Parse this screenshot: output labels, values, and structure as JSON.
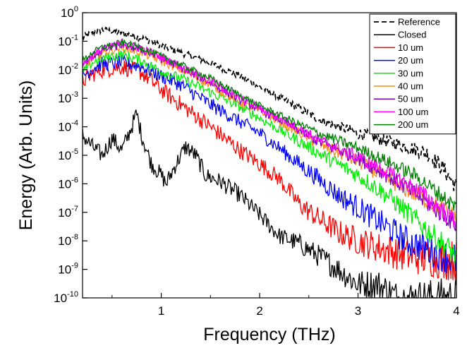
{
  "chart_data": {
    "type": "line",
    "xlabel": "Frequency (THz)",
    "ylabel": "Energy (Arb. Units)",
    "xlim": [
      0.2,
      4.0
    ],
    "ylim": [
      1e-10,
      1
    ],
    "y_scale": "log",
    "x_ticks": [
      1,
      2,
      3,
      4
    ],
    "x_tick_labels": [
      "1",
      "2",
      "3",
      "4"
    ],
    "y_ticks": [
      {
        "value": 1,
        "base": "10",
        "exp": "0"
      },
      {
        "value": 0.1,
        "base": "10",
        "exp": "-1"
      },
      {
        "value": 0.01,
        "base": "10",
        "exp": "-2"
      },
      {
        "value": 0.001,
        "base": "10",
        "exp": "-3"
      },
      {
        "value": 0.0001,
        "base": "10",
        "exp": "-4"
      },
      {
        "value": 1e-05,
        "base": "10",
        "exp": "-5"
      },
      {
        "value": 1e-06,
        "base": "10",
        "exp": "-6"
      },
      {
        "value": 1e-07,
        "base": "10",
        "exp": "-7"
      },
      {
        "value": 1e-08,
        "base": "10",
        "exp": "-8"
      },
      {
        "value": 1e-09,
        "base": "10",
        "exp": "-9"
      },
      {
        "value": 1e-10,
        "base": "10",
        "exp": "-10"
      }
    ],
    "grid": false,
    "legend_position": "top-right",
    "series": [
      {
        "name": "Reference",
        "color": "#000000",
        "dash": "dashed",
        "x": [
          0.2,
          0.3,
          0.4,
          0.6,
          0.8,
          1.0,
          1.2,
          1.5,
          1.8,
          2.0,
          2.3,
          2.6,
          3.0,
          3.4,
          3.7,
          3.85,
          4.0
        ],
        "y": [
          0.13,
          0.2,
          0.25,
          0.2,
          0.13,
          0.07,
          0.04,
          0.017,
          0.006,
          0.0025,
          0.0007,
          0.00018,
          6e-05,
          2.5e-05,
          1.2e-05,
          4e-06,
          8e-07
        ],
        "noise": 0.12
      },
      {
        "name": "Closed",
        "color": "#000000",
        "dash": "solid",
        "x": [
          0.2,
          0.3,
          0.4,
          0.5,
          0.6,
          0.7,
          0.75,
          0.8,
          0.9,
          1.0,
          1.05,
          1.15,
          1.25,
          1.35,
          1.45,
          1.6,
          1.8,
          2.0,
          2.2,
          2.4,
          2.6,
          2.8,
          3.0,
          3.2,
          3.4,
          3.6,
          4.0
        ],
        "y": [
          5e-05,
          2e-05,
          1e-05,
          4e-05,
          1.5e-05,
          0.0001,
          0.0003,
          5e-05,
          5e-06,
          2e-06,
          1e-06,
          5e-06,
          2e-05,
          1e-05,
          2e-06,
          1.2e-06,
          4e-07,
          8e-08,
          1.5e-08,
          8e-09,
          3e-09,
          1e-09,
          3e-10,
          3e-10,
          1e-10,
          1e-10,
          1e-10
        ],
        "noise": 0.3
      },
      {
        "name": "10 um",
        "color": "#ff0000",
        "dash": "solid",
        "x": [
          0.2,
          0.3,
          0.4,
          0.6,
          0.8,
          1.0,
          1.2,
          1.5,
          1.8,
          2.0,
          2.2,
          2.4,
          2.6,
          2.8,
          3.0,
          3.2,
          3.5,
          4.0
        ],
        "y": [
          0.004,
          0.007,
          0.01,
          0.013,
          0.008,
          0.002,
          0.0006,
          0.0001,
          1.5e-05,
          5e-06,
          1.5e-06,
          2e-07,
          6e-08,
          2e-08,
          1e-08,
          6e-09,
          3e-09,
          2e-09
        ],
        "noise": 0.3
      },
      {
        "name": "20 um",
        "color": "#0000ff",
        "dash": "solid",
        "x": [
          0.2,
          0.3,
          0.4,
          0.6,
          0.8,
          1.0,
          1.2,
          1.5,
          1.8,
          2.0,
          2.2,
          2.4,
          2.6,
          2.8,
          3.0,
          3.2,
          3.5,
          4.0
        ],
        "y": [
          0.006,
          0.011,
          0.016,
          0.018,
          0.013,
          0.006,
          0.003,
          0.0006,
          0.00015,
          6e-05,
          1.8e-05,
          5e-06,
          1.5e-06,
          4e-07,
          1.5e-07,
          5e-08,
          1e-08,
          2e-09
        ],
        "noise": 0.25
      },
      {
        "name": "30 um",
        "color": "#00ee00",
        "dash": "solid",
        "x": [
          0.2,
          0.3,
          0.4,
          0.6,
          0.8,
          1.0,
          1.2,
          1.5,
          1.8,
          2.0,
          2.3,
          2.6,
          3.0,
          3.3,
          3.6,
          4.0
        ],
        "y": [
          0.008,
          0.018,
          0.025,
          0.035,
          0.02,
          0.009,
          0.005,
          0.0016,
          0.0005,
          0.0002,
          5e-05,
          1.2e-05,
          2e-06,
          4e-07,
          5e-08,
          3e-09
        ],
        "noise": 0.18
      },
      {
        "name": "40 um",
        "color": "#ff8c1a",
        "dash": "solid",
        "x": [
          0.2,
          0.3,
          0.4,
          0.6,
          0.8,
          1.0,
          1.2,
          1.5,
          1.8,
          2.0,
          2.3,
          2.6,
          3.0,
          3.3,
          3.6,
          4.0
        ],
        "y": [
          0.012,
          0.025,
          0.04,
          0.06,
          0.04,
          0.02,
          0.01,
          0.003,
          0.0007,
          0.00035,
          0.0001,
          2.5e-05,
          6e-06,
          1.5e-06,
          4e-07,
          6e-08
        ],
        "noise": 0.15
      },
      {
        "name": "50 um",
        "color": "#8000c0",
        "dash": "solid",
        "x": [
          0.2,
          0.3,
          0.4,
          0.6,
          0.8,
          1.0,
          1.2,
          1.5,
          1.8,
          2.0,
          2.3,
          2.6,
          3.0,
          3.3,
          3.6,
          4.0
        ],
        "y": [
          0.015,
          0.03,
          0.05,
          0.075,
          0.05,
          0.025,
          0.012,
          0.0035,
          0.0009,
          0.0004,
          0.00012,
          3e-05,
          8e-06,
          2e-06,
          4e-07,
          4e-08
        ],
        "noise": 0.15
      },
      {
        "name": "100 um",
        "color": "#ff00ff",
        "dash": "solid",
        "x": [
          0.2,
          0.3,
          0.4,
          0.6,
          0.8,
          1.0,
          1.2,
          1.5,
          1.8,
          2.0,
          2.3,
          2.6,
          3.0,
          3.3,
          3.6,
          4.0
        ],
        "y": [
          0.015,
          0.03,
          0.05,
          0.085,
          0.055,
          0.028,
          0.013,
          0.004,
          0.001,
          0.00045,
          0.00014,
          3.5e-05,
          9e-06,
          2.5e-06,
          6e-07,
          5e-08
        ],
        "noise": 0.15
      },
      {
        "name": "200 um",
        "color": "#008000",
        "dash": "solid",
        "x": [
          0.2,
          0.3,
          0.4,
          0.6,
          0.8,
          1.0,
          1.2,
          1.5,
          1.8,
          2.0,
          2.3,
          2.6,
          3.0,
          3.3,
          3.6,
          4.0
        ],
        "y": [
          0.02,
          0.04,
          0.06,
          0.09,
          0.06,
          0.03,
          0.015,
          0.005,
          0.0013,
          0.00055,
          0.00018,
          6e-05,
          1.8e-05,
          6e-06,
          1.8e-06,
          1.5e-07
        ],
        "noise": 0.12
      }
    ]
  }
}
